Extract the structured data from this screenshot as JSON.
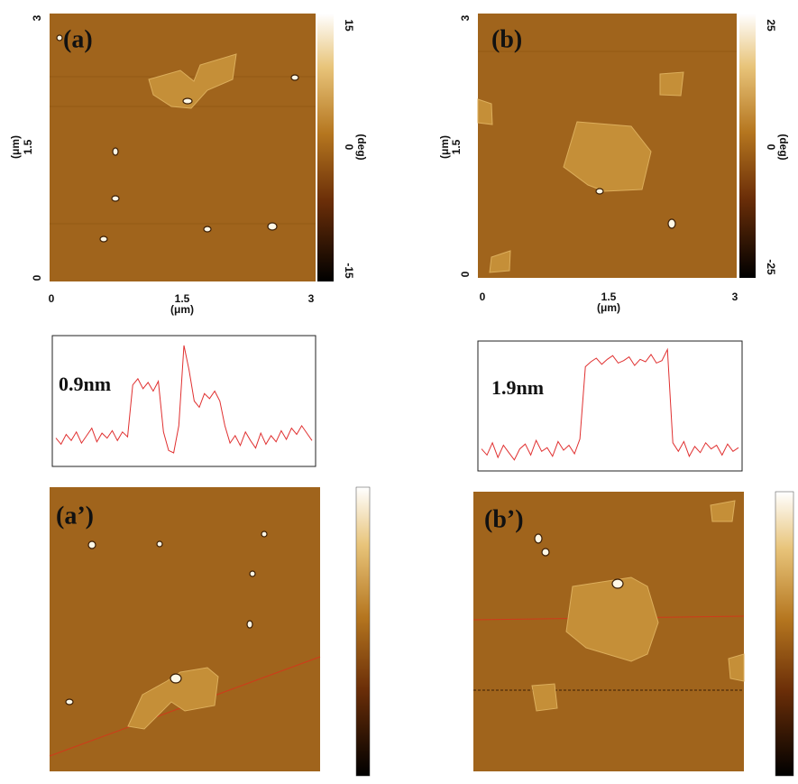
{
  "panels": [
    {
      "label": "(a)",
      "axis_unit": "(μm)",
      "xticks": [
        "0",
        "1.5",
        "3"
      ],
      "yticks": [
        "0",
        "1.5",
        "3"
      ],
      "colorbar": {
        "max": "15",
        "mid": "0",
        "min": "-15",
        "unit": "(deg)"
      }
    },
    {
      "label": "(b)",
      "axis_unit": "(μm)",
      "xticks": [
        "0",
        "1.5",
        "3"
      ],
      "yticks": [
        "0",
        "1.5",
        "3"
      ],
      "colorbar": {
        "max": "25",
        "mid": "0",
        "min": "-25",
        "unit": "(deg)"
      }
    },
    {
      "label": "(a’)"
    },
    {
      "label": "(b’)"
    }
  ],
  "profiles": [
    {
      "label": "0.9nm",
      "ylim": [
        0,
        10
      ],
      "color": "#e03030",
      "values": [
        2,
        1.5,
        2.3,
        1.8,
        2.5,
        1.6,
        2.2,
        2.8,
        1.7,
        2.4,
        2,
        2.6,
        1.8,
        2.5,
        2.1,
        6.3,
        6.8,
        6,
        6.5,
        5.8,
        6.6,
        2.5,
        1,
        0.8,
        3,
        9.5,
        7.5,
        5,
        4.5,
        5.6,
        5.2,
        5.8,
        5,
        3,
        1.6,
        2.2,
        1.4,
        2.5,
        1.8,
        1.2,
        2.4,
        1.5,
        2.2,
        1.7,
        2.6,
        1.9,
        2.8,
        2.3,
        3,
        2.4,
        1.8
      ]
    },
    {
      "label": "1.9nm",
      "ylim": [
        0,
        10
      ],
      "color": "#e03030",
      "values": [
        1.5,
        1,
        2,
        0.8,
        1.8,
        1.2,
        0.6,
        1.5,
        1.9,
        1,
        2.2,
        1.3,
        1.6,
        0.9,
        2.1,
        1.4,
        1.8,
        1.1,
        2.3,
        8.2,
        8.6,
        8.9,
        8.4,
        8.8,
        9.1,
        8.5,
        8.7,
        9,
        8.3,
        8.8,
        8.6,
        9.2,
        8.5,
        8.7,
        9.6,
        2,
        1.3,
        2.1,
        0.9,
        1.7,
        1.2,
        2,
        1.5,
        1.8,
        1,
        1.9,
        1.3,
        1.6
      ]
    }
  ]
}
